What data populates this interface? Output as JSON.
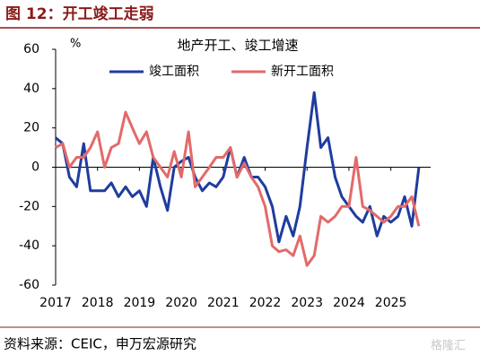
{
  "header": {
    "title": "图 12：开工竣工走弱"
  },
  "chart_data": {
    "type": "line",
    "title": "地产开工、竣工增速",
    "y_label": "%",
    "x": [
      2017,
      2017.17,
      2017.33,
      2017.5,
      2017.67,
      2017.83,
      2018,
      2018.17,
      2018.33,
      2018.5,
      2018.67,
      2018.83,
      2019,
      2019.17,
      2019.33,
      2019.5,
      2019.67,
      2019.83,
      2020,
      2020.17,
      2020.33,
      2020.5,
      2020.67,
      2020.83,
      2021,
      2021.17,
      2021.33,
      2021.5,
      2021.67,
      2021.83,
      2022,
      2022.17,
      2022.33,
      2022.5,
      2022.67,
      2022.83,
      2023,
      2023.17,
      2023.33,
      2023.5,
      2023.67,
      2023.83,
      2024,
      2024.17,
      2024.33,
      2024.5,
      2024.67,
      2024.83,
      2025,
      2025.17,
      2025.33,
      2025.5,
      2025.67
    ],
    "series": [
      {
        "name": "竣工面积",
        "color": "#1f3c9e",
        "values": [
          15,
          12,
          -5,
          -10,
          12,
          -12,
          -12,
          -12,
          -8,
          -15,
          -10,
          -15,
          -12,
          -20,
          5,
          -10,
          -22,
          0,
          3,
          5,
          -5,
          -12,
          -8,
          -10,
          -5,
          10,
          -5,
          5,
          -5,
          -5,
          -10,
          -20,
          -38,
          -25,
          -35,
          -20,
          10,
          38,
          10,
          15,
          -5,
          -15,
          -20,
          -25,
          -28,
          -20,
          -35,
          -25,
          -28,
          -25,
          -15,
          -30,
          0
        ]
      },
      {
        "name": "新开工面积",
        "color": "#e36a6a",
        "values": [
          10,
          12,
          0,
          5,
          5,
          10,
          18,
          0,
          10,
          12,
          28,
          20,
          12,
          18,
          5,
          0,
          -5,
          8,
          -5,
          18,
          -10,
          -5,
          0,
          5,
          5,
          10,
          -5,
          2,
          -5,
          -10,
          -20,
          -40,
          -43,
          -42,
          -45,
          -35,
          -50,
          -45,
          -25,
          -28,
          -25,
          -20,
          -20,
          5,
          -20,
          -22,
          -25,
          -28,
          -25,
          -20,
          -20,
          -15,
          -30
        ]
      }
    ],
    "xlim": [
      2017,
      2025.95
    ],
    "xticks": [
      2017,
      2018,
      2019,
      2020,
      2021,
      2022,
      2023,
      2024,
      2025
    ],
    "ylim": [
      -60,
      60
    ],
    "yticks": [
      -60,
      -40,
      -20,
      0,
      20,
      40,
      60
    ]
  },
  "footer": {
    "source": "资料来源：CEIC，申万宏源研究",
    "watermark": "格隆汇"
  }
}
